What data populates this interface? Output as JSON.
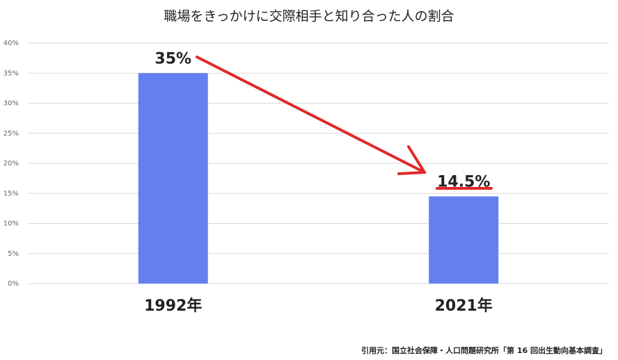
{
  "chart_data": {
    "type": "bar",
    "title": "職場をきっかけに交際相手と知り合った人の割合",
    "categories": [
      "1992年",
      "2021年"
    ],
    "values": [
      35,
      14.5
    ],
    "value_labels": [
      "35%",
      "14.5%"
    ],
    "color": "#6480f0",
    "ylim": [
      0,
      40
    ],
    "yticks": [
      {
        "value": 0,
        "label": "0%"
      },
      {
        "value": 5,
        "label": "5%"
      },
      {
        "value": 10,
        "label": "10%"
      },
      {
        "value": 15,
        "label": "15%"
      },
      {
        "value": 20,
        "label": "20%"
      },
      {
        "value": 25,
        "label": "25%"
      },
      {
        "value": 30,
        "label": "30%"
      },
      {
        "value": 35,
        "label": "35%"
      },
      {
        "value": 40,
        "label": "40%"
      }
    ],
    "grid": true,
    "source": "引用元：国立社会保障・人口問題研究所「第 16 回出生動向基本調査」"
  }
}
